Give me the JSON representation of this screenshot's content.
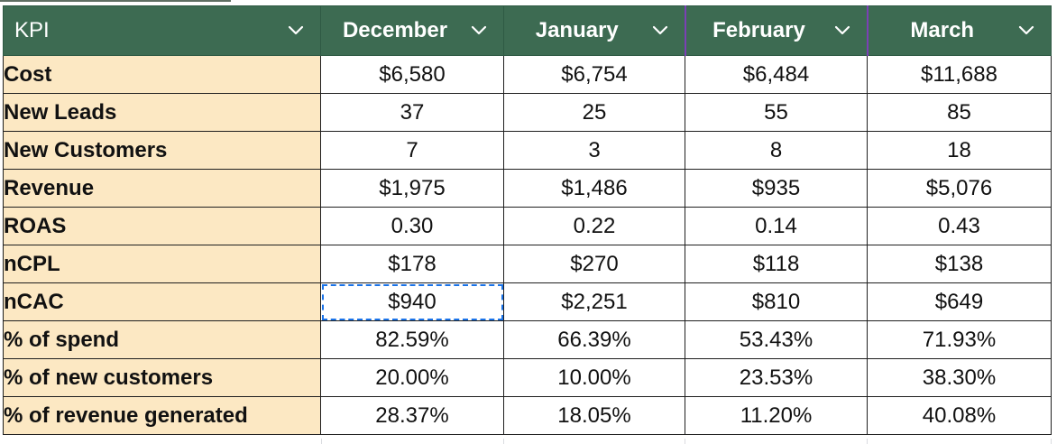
{
  "header": {
    "kpi": "KPI",
    "months": [
      "December",
      "January",
      "February",
      "March"
    ]
  },
  "icons": {
    "dropdown": "chevron-down-icon"
  },
  "colors": {
    "header_bg": "#3d6b52",
    "label_bg": "#fce8c3",
    "selection": "#1a73e8",
    "column_highlight": "#7b3fb5"
  },
  "rows": [
    {
      "label": "Cost",
      "values": [
        "$6,580",
        "$6,754",
        "$6,484",
        "$11,688"
      ]
    },
    {
      "label": "New Leads",
      "values": [
        "37",
        "25",
        "55",
        "85"
      ]
    },
    {
      "label": "New Customers",
      "values": [
        "7",
        "3",
        "8",
        "18"
      ]
    },
    {
      "label": "Revenue",
      "values": [
        "$1,975",
        "$1,486",
        "$935",
        "$5,076"
      ]
    },
    {
      "label": "ROAS",
      "values": [
        "0.30",
        "0.22",
        "0.14",
        "0.43"
      ]
    },
    {
      "label": "nCPL",
      "values": [
        "$178",
        "$270",
        "$118",
        "$138"
      ]
    },
    {
      "label": "nCAC",
      "values": [
        "$940",
        "$2,251",
        "$810",
        "$649"
      ]
    },
    {
      "label": "% of spend",
      "values": [
        "82.59%",
        "66.39%",
        "53.43%",
        "71.93%"
      ]
    },
    {
      "label": "% of new customers",
      "values": [
        "20.00%",
        "10.00%",
        "23.53%",
        "38.30%"
      ]
    },
    {
      "label": "% of revenue generated",
      "values": [
        "28.37%",
        "18.05%",
        "11.20%",
        "40.08%"
      ]
    }
  ],
  "selected_cell": {
    "row": "nCAC",
    "column": "December"
  }
}
